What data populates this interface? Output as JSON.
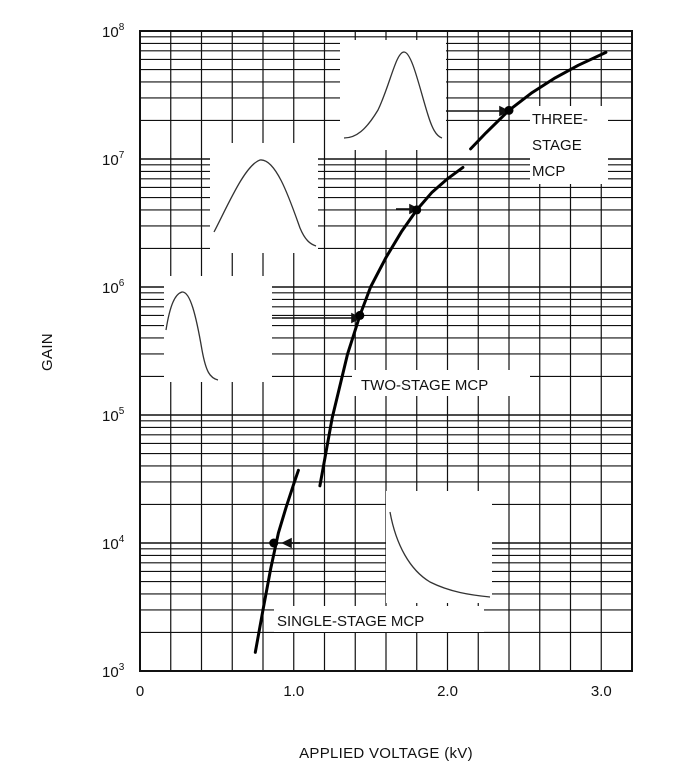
{
  "chart_data": {
    "type": "line",
    "xlabel": "APPLIED VOLTAGE (kV)",
    "ylabel": "GAIN",
    "x_scale": "linear",
    "y_scale": "log",
    "xlim": [
      0,
      3.2
    ],
    "ylim": [
      1000,
      100000000
    ],
    "grid": true,
    "x_ticks": [
      {
        "value": 0,
        "label": "0"
      },
      {
        "value": 1.0,
        "label": "1.0"
      },
      {
        "value": 2.0,
        "label": "2.0"
      },
      {
        "value": 3.0,
        "label": "3.0"
      }
    ],
    "y_ticks": [
      {
        "value": 1000,
        "base": "10",
        "exp": "3"
      },
      {
        "value": 10000,
        "base": "10",
        "exp": "4"
      },
      {
        "value": 100000,
        "base": "10",
        "exp": "5"
      },
      {
        "value": 1000000,
        "base": "10",
        "exp": "6"
      },
      {
        "value": 10000000,
        "base": "10",
        "exp": "7"
      },
      {
        "value": 100000000,
        "base": "10",
        "exp": "8"
      }
    ],
    "series": [
      {
        "x": [
          0.75,
          0.8,
          0.85,
          0.9,
          0.95,
          1.0,
          1.03
        ],
        "y": [
          1400,
          3000,
          6300,
          12000,
          19000,
          29000,
          37000
        ]
      },
      {
        "x": [
          1.17,
          1.25,
          1.35,
          1.43,
          1.5,
          1.6,
          1.7,
          1.8,
          1.9,
          2.0,
          2.1
        ],
        "y": [
          28000,
          95000,
          300000,
          600000,
          1000000,
          1700000,
          2700000,
          4000000,
          5500000,
          7000000,
          8600000
        ]
      },
      {
        "x": [
          2.15,
          2.25,
          2.4,
          2.55,
          2.7,
          2.85,
          3.03
        ],
        "y": [
          12000000,
          16000000,
          24000000,
          33000000,
          43000000,
          54000000,
          68000000
        ]
      }
    ],
    "markers": [
      {
        "x": 0.87,
        "y": 10000
      },
      {
        "x": 1.43,
        "y": 600000
      },
      {
        "x": 1.8,
        "y": 4000000
      },
      {
        "x": 2.4,
        "y": 24000000
      }
    ],
    "annotations": [
      {
        "text": "SINGLE-STAGE MCP"
      },
      {
        "text": "TWO-STAGE MCP"
      },
      {
        "lines": [
          "THREE-",
          "STAGE",
          "MCP"
        ]
      }
    ]
  }
}
